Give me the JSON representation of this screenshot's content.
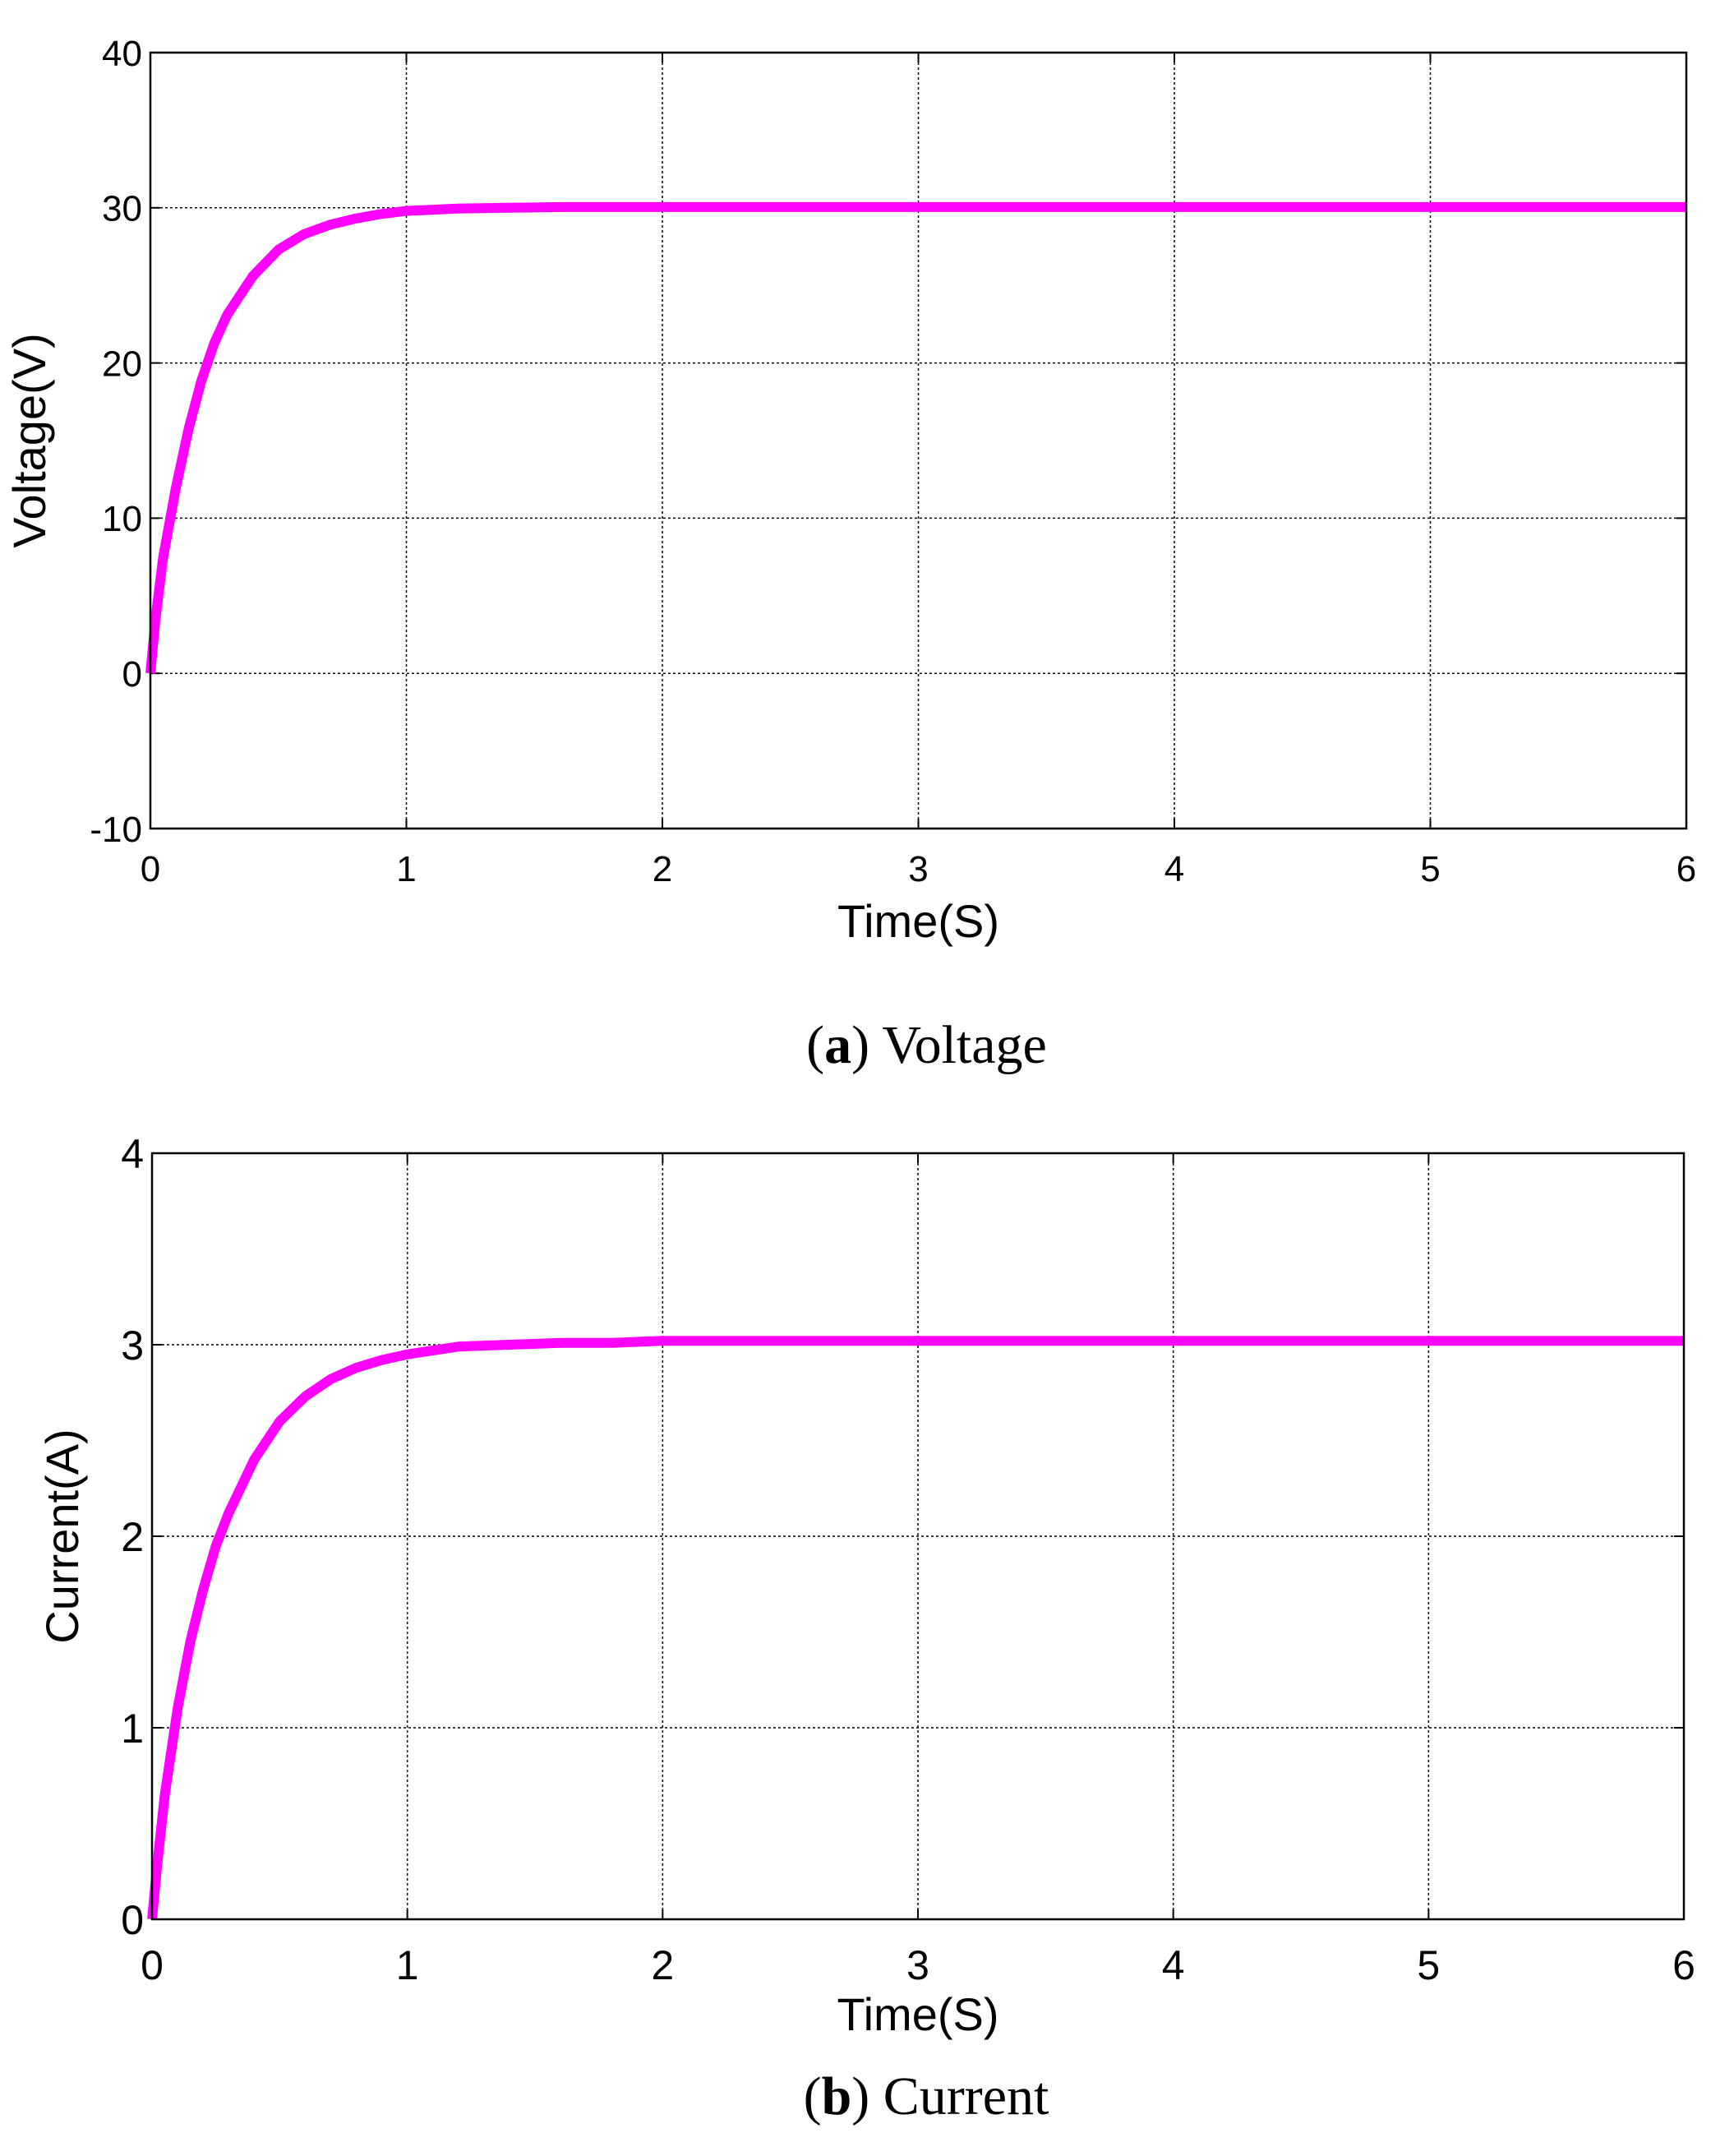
{
  "chart_data": [
    {
      "type": "line",
      "caption": {
        "open": "(",
        "letter": "a",
        "close": ")",
        "text": "Voltage"
      },
      "xlabel": "Time(S)",
      "ylabel": "Voltage(V)",
      "xlim": [
        0,
        6
      ],
      "ylim": [
        -10,
        40
      ],
      "xticks": [
        0,
        1,
        2,
        3,
        4,
        5,
        6
      ],
      "yticks": [
        -10,
        0,
        10,
        20,
        30,
        40
      ],
      "grid": true,
      "series": [
        {
          "color": "#ff00ff",
          "x": [
            0,
            0.02,
            0.05,
            0.1,
            0.15,
            0.2,
            0.25,
            0.3,
            0.4,
            0.5,
            0.6,
            0.7,
            0.8,
            0.9,
            1.0,
            1.2,
            1.4,
            1.6,
            1.8,
            2.0,
            2.5,
            3.0,
            4.0,
            5.0,
            6.0
          ],
          "y": [
            0,
            3.5,
            7.5,
            12.0,
            15.8,
            18.9,
            21.3,
            23.1,
            25.6,
            27.3,
            28.3,
            28.9,
            29.3,
            29.6,
            29.8,
            29.95,
            30.0,
            30.05,
            30.05,
            30.05,
            30.05,
            30.05,
            30.05,
            30.05,
            30.05
          ]
        }
      ]
    },
    {
      "type": "line",
      "caption": {
        "open": "(",
        "letter": "b",
        "close": ")",
        "text": "Current"
      },
      "xlabel": "Time(S)",
      "ylabel": "Current(A)",
      "xlim": [
        0,
        6
      ],
      "ylim": [
        0,
        4
      ],
      "xticks": [
        0,
        1,
        2,
        3,
        4,
        5,
        6
      ],
      "yticks": [
        0,
        1,
        2,
        3,
        4
      ],
      "grid": true,
      "series": [
        {
          "color": "#ff00ff",
          "x": [
            0,
            0.02,
            0.05,
            0.1,
            0.15,
            0.2,
            0.25,
            0.3,
            0.4,
            0.5,
            0.6,
            0.7,
            0.8,
            0.9,
            1.0,
            1.2,
            1.4,
            1.6,
            1.8,
            2.0,
            2.5,
            3.0,
            4.0,
            5.0,
            6.0
          ],
          "y": [
            0,
            0.28,
            0.65,
            1.1,
            1.45,
            1.72,
            1.95,
            2.12,
            2.4,
            2.6,
            2.73,
            2.82,
            2.88,
            2.92,
            2.95,
            2.99,
            3.0,
            3.01,
            3.01,
            3.02,
            3.02,
            3.02,
            3.02,
            3.02,
            3.02
          ]
        }
      ]
    }
  ]
}
